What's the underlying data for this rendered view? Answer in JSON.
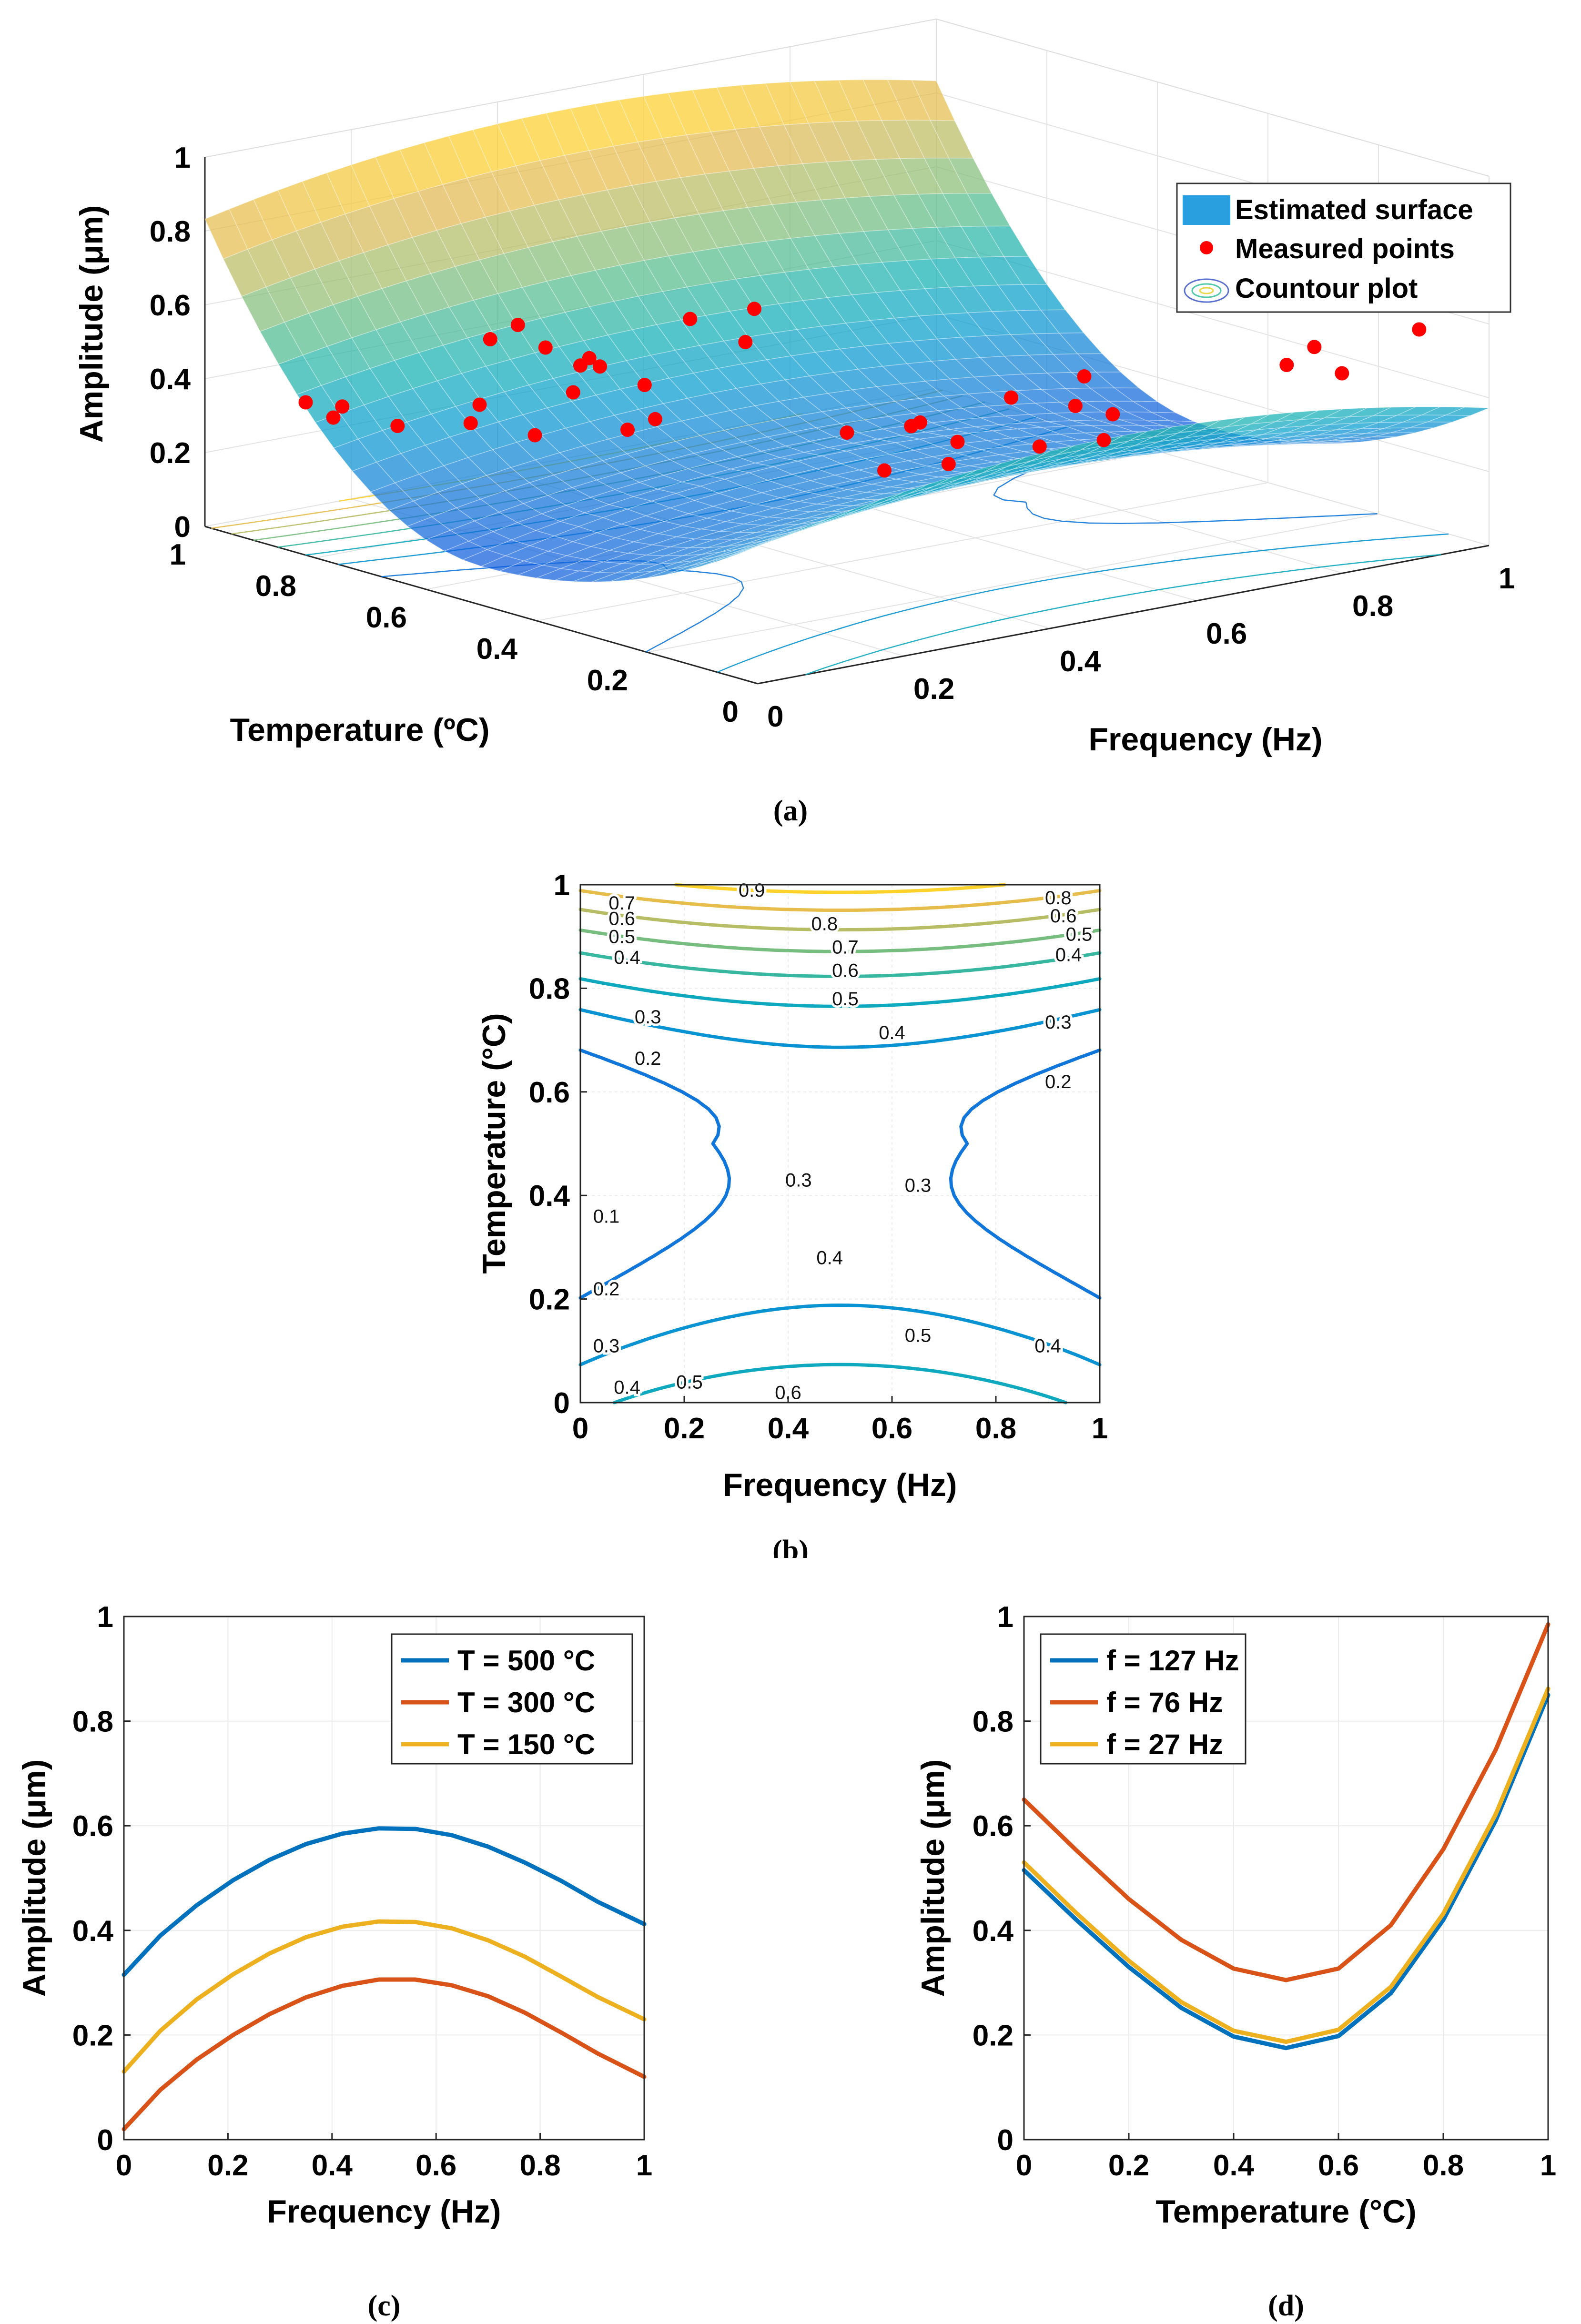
{
  "chart_data": [
    {
      "panel": "a",
      "type": "surface",
      "caption": "(a)",
      "xlabel": "Frequency (Hz)",
      "ylabel": "Temperature (ºC)",
      "zlabel": "Amplitude (μm)",
      "x_ticks": [
        "0",
        "0.2",
        "0.4",
        "0.6",
        "0.8",
        "1"
      ],
      "y_ticks": [
        "0",
        "0.2",
        "0.4",
        "0.6",
        "0.8",
        "1"
      ],
      "z_ticks": [
        "0",
        "0.2",
        "0.4",
        "0.6",
        "0.8",
        "1"
      ],
      "xlim": [
        0,
        1
      ],
      "ylim": [
        0,
        1
      ],
      "zlim": [
        0,
        1
      ],
      "grid": true,
      "legend_position": "top-right",
      "legend": [
        "Estimated surface",
        "Measured points",
        "Countour plot"
      ],
      "series": [
        {
          "name": "Estimated surface",
          "kind": "surface"
        },
        {
          "name": "Measured points",
          "kind": "scatter",
          "points": [
            [
              0.05,
              0.5,
              0.74
            ],
            [
              0.05,
              0.45,
              0.7
            ],
            [
              0.05,
              0.55,
              0.68
            ],
            [
              0.05,
              0.4,
              0.6
            ],
            [
              0.2,
              0.55,
              0.55
            ],
            [
              0.2,
              0.45,
              0.45
            ],
            [
              0.2,
              0.5,
              0.4
            ],
            [
              0.45,
              0.9,
              0.33
            ],
            [
              0.45,
              0.8,
              0.3
            ],
            [
              0.4,
              0.85,
              0.35
            ],
            [
              0.55,
              0.85,
              0.42
            ],
            [
              0.55,
              0.75,
              0.4
            ],
            [
              0.6,
              0.8,
              0.45
            ],
            [
              0.1,
              0.95,
              0.32
            ],
            [
              0.1,
              0.9,
              0.3
            ],
            [
              0.15,
              0.95,
              0.29
            ],
            [
              0.15,
              0.85,
              0.28
            ],
            [
              0.25,
              0.85,
              0.25
            ],
            [
              0.3,
              0.9,
              0.26
            ],
            [
              0.3,
              0.8,
              0.22
            ],
            [
              0.4,
              0.3,
              0.3
            ],
            [
              0.45,
              0.25,
              0.32
            ],
            [
              0.5,
              0.3,
              0.34
            ],
            [
              0.5,
              0.5,
              0.28
            ],
            [
              0.55,
              0.45,
              0.3
            ],
            [
              0.6,
              0.5,
              0.27
            ],
            [
              0.65,
              0.35,
              0.25
            ],
            [
              0.7,
              0.3,
              0.27
            ],
            [
              0.75,
              0.35,
              0.3
            ],
            [
              0.8,
              0.6,
              0.22
            ],
            [
              0.85,
              0.55,
              0.2
            ],
            [
              0.9,
              0.6,
              0.24
            ],
            [
              0.95,
              0.25,
              0.45
            ],
            [
              0.95,
              0.2,
              0.4
            ],
            [
              0.95,
              0.3,
              0.38
            ],
            [
              0.98,
              0.1,
              0.55
            ],
            [
              0.98,
              0.15,
              0.62
            ]
          ]
        },
        {
          "name": "Countour plot",
          "kind": "contour",
          "levels": [
            0.1,
            0.2,
            0.3,
            0.4,
            0.5,
            0.6,
            0.7,
            0.8,
            0.9
          ]
        }
      ]
    },
    {
      "panel": "b",
      "type": "contour",
      "caption": "(b)",
      "xlabel": "Frequency (Hz)",
      "ylabel": "Temperature (°C)",
      "xlim": [
        0,
        1
      ],
      "ylim": [
        0,
        1
      ],
      "x_ticks": [
        "0",
        "0.2",
        "0.4",
        "0.6",
        "0.8",
        "1"
      ],
      "y_ticks": [
        "0",
        "0.2",
        "0.4",
        "0.6",
        "0.8",
        "1"
      ],
      "levels": [
        0.1,
        0.2,
        0.3,
        0.4,
        0.5,
        0.6,
        0.7,
        0.8,
        0.9
      ],
      "level_labels": [
        {
          "text": "0.9",
          "x": 0.33,
          "y": 0.99
        },
        {
          "text": "0.8",
          "x": 0.92,
          "y": 0.975
        },
        {
          "text": "0.7",
          "x": 0.08,
          "y": 0.965
        },
        {
          "text": "0.6",
          "x": 0.08,
          "y": 0.935
        },
        {
          "text": "0.5",
          "x": 0.08,
          "y": 0.9
        },
        {
          "text": "0.4",
          "x": 0.09,
          "y": 0.86
        },
        {
          "text": "0.8",
          "x": 0.47,
          "y": 0.925
        },
        {
          "text": "0.7",
          "x": 0.51,
          "y": 0.88
        },
        {
          "text": "0.6",
          "x": 0.51,
          "y": 0.835
        },
        {
          "text": "0.5",
          "x": 0.51,
          "y": 0.78
        },
        {
          "text": "0.4",
          "x": 0.6,
          "y": 0.715
        },
        {
          "text": "0.3",
          "x": 0.13,
          "y": 0.745
        },
        {
          "text": "0.2",
          "x": 0.13,
          "y": 0.665
        },
        {
          "text": "0.6",
          "x": 0.93,
          "y": 0.94
        },
        {
          "text": "0.5",
          "x": 0.96,
          "y": 0.905
        },
        {
          "text": "0.4",
          "x": 0.94,
          "y": 0.865
        },
        {
          "text": "0.3",
          "x": 0.92,
          "y": 0.735
        },
        {
          "text": "0.2",
          "x": 0.92,
          "y": 0.62
        },
        {
          "text": "0.3",
          "x": 0.42,
          "y": 0.43
        },
        {
          "text": "0.3",
          "x": 0.65,
          "y": 0.42
        },
        {
          "text": "0.1",
          "x": 0.05,
          "y": 0.36
        },
        {
          "text": "0.2",
          "x": 0.05,
          "y": 0.22
        },
        {
          "text": "0.3",
          "x": 0.05,
          "y": 0.11
        },
        {
          "text": "0.4",
          "x": 0.09,
          "y": 0.03
        },
        {
          "text": "0.4",
          "x": 0.48,
          "y": 0.28
        },
        {
          "text": "0.5",
          "x": 0.21,
          "y": 0.04
        },
        {
          "text": "0.5",
          "x": 0.65,
          "y": 0.13
        },
        {
          "text": "0.4",
          "x": 0.9,
          "y": 0.11
        },
        {
          "text": "0.6",
          "x": 0.4,
          "y": 0.02
        }
      ]
    },
    {
      "panel": "c",
      "type": "line",
      "caption": "(c)",
      "xlabel": "Frequency (Hz)",
      "ylabel": "Amplitude (μm)",
      "xlim": [
        0,
        1
      ],
      "ylim": [
        0,
        1
      ],
      "x_ticks": [
        "0",
        "0.2",
        "0.4",
        "0.6",
        "0.8",
        "1"
      ],
      "y_ticks": [
        "0",
        "0.2",
        "0.4",
        "0.6",
        "0.8",
        "1"
      ],
      "legend_position": "top-right",
      "x": [
        0,
        0.07,
        0.14,
        0.21,
        0.28,
        0.35,
        0.42,
        0.49,
        0.56,
        0.63,
        0.7,
        0.77,
        0.84,
        0.91,
        1.0
      ],
      "series": [
        {
          "name": "T = 500 °C",
          "color": "#0072BD",
          "values": [
            0.315,
            0.39,
            0.448,
            0.496,
            0.535,
            0.565,
            0.585,
            0.595,
            0.594,
            0.582,
            0.56,
            0.53,
            0.495,
            0.455,
            0.412
          ]
        },
        {
          "name": "T = 300 °C",
          "color": "#D95319",
          "values": [
            0.02,
            0.095,
            0.153,
            0.2,
            0.24,
            0.272,
            0.294,
            0.306,
            0.306,
            0.295,
            0.274,
            0.243,
            0.205,
            0.165,
            0.12
          ]
        },
        {
          "name": "T = 150 °C",
          "color": "#EDB120",
          "values": [
            0.13,
            0.208,
            0.268,
            0.316,
            0.356,
            0.387,
            0.407,
            0.417,
            0.416,
            0.404,
            0.381,
            0.35,
            0.312,
            0.273,
            0.23
          ]
        }
      ]
    },
    {
      "panel": "d",
      "type": "line",
      "caption": "(d)",
      "xlabel": "Temperature (°C)",
      "ylabel": "Amplitude (μm)",
      "xlim": [
        0,
        1
      ],
      "ylim": [
        0,
        1
      ],
      "x_ticks": [
        "0",
        "0.2",
        "0.4",
        "0.6",
        "0.8",
        "1"
      ],
      "y_ticks": [
        "0",
        "0.2",
        "0.4",
        "0.6",
        "0.8",
        "1"
      ],
      "legend_position": "top-left",
      "x": [
        0,
        0.1,
        0.2,
        0.3,
        0.4,
        0.5,
        0.6,
        0.7,
        0.8,
        0.9,
        1.0
      ],
      "series": [
        {
          "name": "f = 127 Hz",
          "color": "#0072BD",
          "values": [
            0.515,
            0.42,
            0.33,
            0.252,
            0.197,
            0.175,
            0.198,
            0.28,
            0.42,
            0.61,
            0.85
          ]
        },
        {
          "name": "f = 76 Hz",
          "color": "#D95319",
          "values": [
            0.65,
            0.553,
            0.46,
            0.382,
            0.327,
            0.305,
            0.327,
            0.41,
            0.555,
            0.745,
            0.985
          ]
        },
        {
          "name": "f = 27 Hz",
          "color": "#EDB120",
          "values": [
            0.53,
            0.433,
            0.342,
            0.263,
            0.208,
            0.187,
            0.21,
            0.292,
            0.432,
            0.622,
            0.862
          ]
        }
      ]
    }
  ]
}
